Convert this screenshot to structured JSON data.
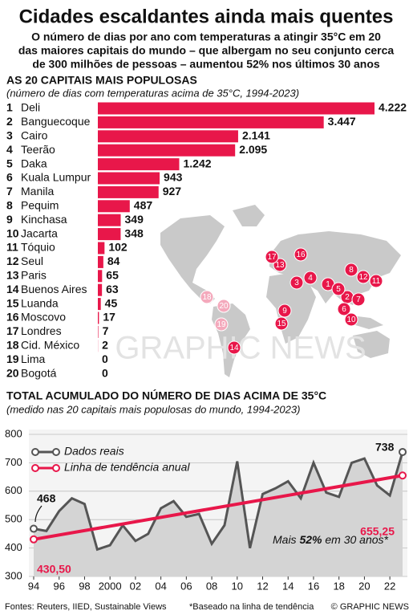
{
  "title": "Cidades escaldantes ainda mais quentes",
  "subtitle": [
    "O número de dias por ano com temperaturas a atingir 35°C em 20",
    "das maiores capitais do mundo – que albergam no seu conjunto cerca",
    "de 300 milhões de pessoas – aumentou 52% nos últimos 30 anos"
  ],
  "watermark": "GRAPHIC NEWS",
  "chart_data": [
    {
      "type": "bar",
      "title": "AS 20 CAPITAIS MAIS POPULOSAS",
      "subtitle": "(número de dias com temperaturas acima de 35°C, 1994-2023)",
      "ranks": [
        1,
        2,
        3,
        4,
        5,
        6,
        7,
        8,
        9,
        10,
        11,
        12,
        13,
        14,
        15,
        16,
        17,
        18,
        19,
        20
      ],
      "categories": [
        "Deli",
        "Banguecoque",
        "Cairo",
        "Teerão",
        "Daka",
        "Kuala Lumpur",
        "Manila",
        "Pequim",
        "Kinchasa",
        "Jacarta",
        "Tóquio",
        "Seul",
        "Paris",
        "Buenos Aires",
        "Luanda",
        "Moscovo",
        "Londres",
        "Cid. México",
        "Lima",
        "Bogotá"
      ],
      "values": [
        4222,
        3447,
        2141,
        2095,
        1242,
        943,
        927,
        487,
        349,
        348,
        102,
        84,
        65,
        63,
        45,
        17,
        7,
        2,
        0,
        0
      ],
      "value_labels": [
        "4.222",
        "3.447",
        "2.141",
        "2.095",
        "1.242",
        "943",
        "927",
        "487",
        "349",
        "348",
        "102",
        "84",
        "65",
        "63",
        "45",
        "17",
        "7",
        "2",
        "0",
        "0"
      ],
      "color": "#e8174a"
    },
    {
      "type": "line",
      "title": "TOTAL ACUMULADO DO NÚMERO DE DIAS ACIMA DE 35°C",
      "subtitle": "(medido nas 20 capitais mais populosas do mundo, 1994-2023)",
      "x": [
        1994,
        1995,
        1996,
        1997,
        1998,
        1999,
        2000,
        2001,
        2002,
        2003,
        2004,
        2005,
        2006,
        2007,
        2008,
        2009,
        2010,
        2011,
        2012,
        2013,
        2014,
        2015,
        2016,
        2017,
        2018,
        2019,
        2020,
        2021,
        2022,
        2023
      ],
      "xlim": [
        1994,
        2023
      ],
      "xticks": [
        {
          "value": 1994,
          "label": "94"
        },
        {
          "value": 1996,
          "label": "96"
        },
        {
          "value": 1998,
          "label": "98"
        },
        2000,
        {
          "value": 2002,
          "label": "02"
        },
        {
          "value": 2004,
          "label": "04"
        },
        {
          "value": 2006,
          "label": "06"
        },
        {
          "value": 2008,
          "label": "08"
        },
        {
          "value": 2010,
          "label": "10"
        },
        {
          "value": 2012,
          "label": "12"
        },
        {
          "value": 2014,
          "label": "14"
        },
        {
          "value": 2016,
          "label": "16"
        },
        {
          "value": 2018,
          "label": "18"
        },
        {
          "value": 2020,
          "label": "20"
        },
        {
          "value": 2022,
          "label": "22"
        }
      ],
      "ylim": [
        300,
        800
      ],
      "yticks": [
        300,
        400,
        500,
        600,
        700,
        800
      ],
      "grid": true,
      "series": [
        {
          "name": "Dados reais",
          "color": "#555555",
          "values": [
            468,
            460,
            530,
            575,
            555,
            395,
            410,
            480,
            425,
            450,
            540,
            565,
            510,
            520,
            415,
            480,
            705,
            400,
            590,
            610,
            635,
            575,
            700,
            595,
            580,
            700,
            715,
            620,
            585,
            738
          ]
        },
        {
          "name": "Linha de tendência anual",
          "color": "#e8174a",
          "x": [
            1994,
            2023
          ],
          "values": [
            430.5,
            655.25
          ],
          "value_labels": [
            "430,50",
            "655,25"
          ]
        }
      ],
      "annotation": [
        "Mais ",
        "52%",
        " em 30 anos*"
      ]
    }
  ],
  "footer": {
    "sources": "Fontes: Reuters, IIED, Sustainable Views",
    "footnote": "*Baseado na linha de tendência",
    "credit": "© GRAPHIC NEWS"
  }
}
